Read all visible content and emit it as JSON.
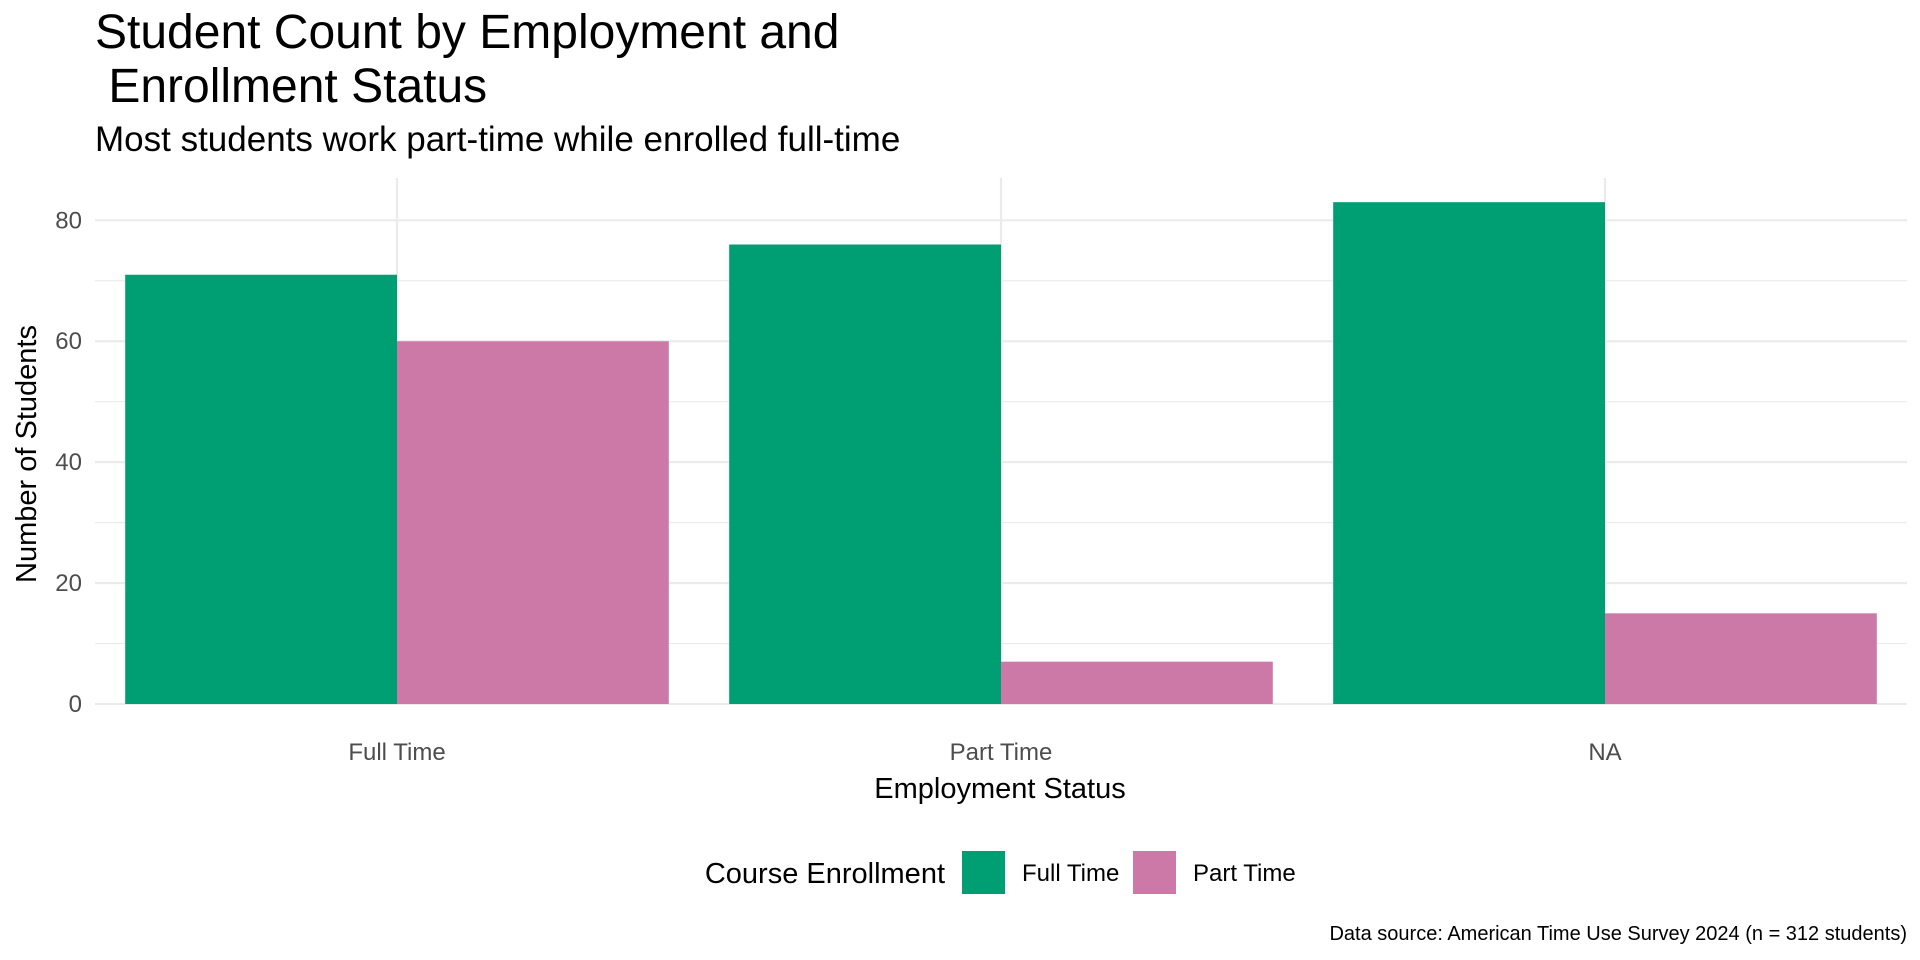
{
  "chart_data": {
    "type": "bar",
    "title": "Student Count by Employment and\n Enrollment Status",
    "subtitle": "Most students work part-time while enrolled full-time",
    "xlabel": "Employment Status",
    "ylabel": "Number of Students",
    "categories": [
      "Full Time",
      "Part Time",
      "NA"
    ],
    "series": [
      {
        "name": "Full Time",
        "color": "#009E73",
        "values": [
          71,
          76,
          83
        ]
      },
      {
        "name": "Part Time",
        "color": "#CC79A7",
        "values": [
          60,
          7,
          15
        ]
      }
    ],
    "ylim": [
      0,
      87
    ],
    "yticks": [
      0,
      20,
      40,
      60,
      80
    ],
    "grid": true,
    "legend": {
      "title": "Course Enrollment",
      "position": "bottom"
    },
    "caption": "Data source: American Time Use Survey 2024 (n = 312 students)"
  }
}
